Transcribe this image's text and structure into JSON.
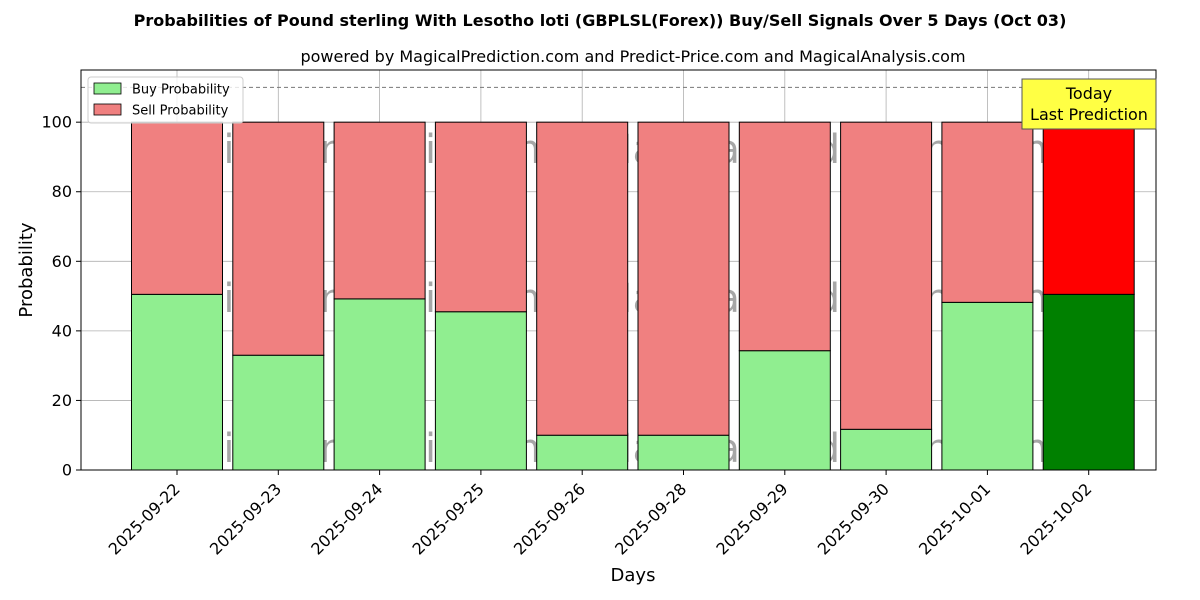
{
  "chart_data": {
    "type": "bar",
    "stacked": true,
    "title": "Probabilities of Pound sterling With Lesotho loti (GBPLSL(Forex)) Buy/Sell Signals Over 5 Days (Oct 03)",
    "subtitle": "powered by MagicalPrediction.com and Predict-Price.com and MagicalAnalysis.com",
    "xlabel": "Days",
    "ylabel": "Probability",
    "ylim": [
      0,
      115
    ],
    "yticks": [
      0,
      20,
      40,
      60,
      80,
      100
    ],
    "reference_line": 110,
    "grid": true,
    "legend_position": "top-left",
    "categories": [
      "2025-09-22",
      "2025-09-23",
      "2025-09-24",
      "2025-09-25",
      "2025-09-26",
      "2025-09-28",
      "2025-09-29",
      "2025-09-30",
      "2025-10-01",
      "2025-10-02"
    ],
    "series": [
      {
        "name": "Buy Probability",
        "color": "#90ee90",
        "highlight_color": "#008000",
        "values": [
          50.5,
          33.0,
          49.2,
          45.5,
          10.0,
          10.0,
          34.3,
          11.7,
          48.2,
          50.5
        ]
      },
      {
        "name": "Sell Probability",
        "color": "#f08080",
        "highlight_color": "#ff0000",
        "values": [
          49.5,
          67.0,
          50.8,
          54.5,
          90.0,
          90.0,
          65.7,
          88.3,
          51.8,
          49.5
        ]
      }
    ],
    "highlight_index": 9,
    "annotation": {
      "line1": "Today",
      "line2": "Last Prediction",
      "color": "#ffff44"
    },
    "watermarks": [
      "MagicalAnalysis.com",
      "MagicalPrediction.com"
    ]
  }
}
